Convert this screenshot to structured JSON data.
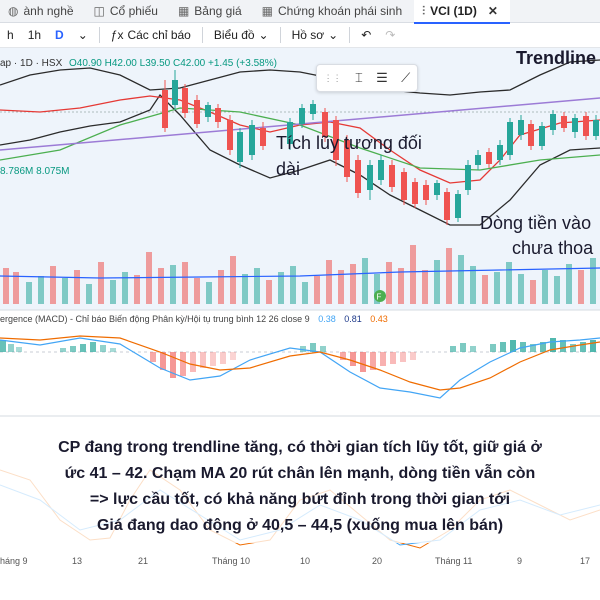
{
  "tabs": [
    {
      "icon": "globe-icon",
      "glyph": "◍",
      "label": "ành nghề"
    },
    {
      "icon": "chart-icon",
      "glyph": "◫",
      "label": "Cổ phiếu"
    },
    {
      "icon": "table-icon",
      "glyph": "▦",
      "label": "Bảng giá"
    },
    {
      "icon": "table-icon",
      "glyph": "▦",
      "label": "Chứng khoán phái sinh"
    },
    {
      "icon": "candle-icon",
      "glyph": "⫶",
      "label": "VCI (1D)",
      "active": true
    }
  ],
  "toolbar": {
    "timeframes": [
      "h",
      "1h",
      "D"
    ],
    "indicators": "Các chỉ báo",
    "chart_type": "Biểu đồ",
    "profile": "Hồ sơ"
  },
  "symbol": {
    "title": "ap · 1D · HSX",
    "ohlc": "O40.90  H42.00  L39.50  C42.00  +1.45 (+3.58%)"
  },
  "volume_label": "8.786M  8.075M",
  "macd": {
    "label": "ergence (MACD) - Chỉ báo Biến động Phân kỳ/Hội tụ trung bình 12 26 close 9",
    "hist": "0.38",
    "macd": "0.81",
    "signal": "0.43"
  },
  "annotations": {
    "trendline": "Trendline",
    "accumulation_1": "Tích lũy tương đối",
    "accumulation_2": "dài",
    "flow_1": "Dòng tiền vào",
    "flow_2": "chưa thoa"
  },
  "summary": [
    "CP đang trong trendline tăng, có thời gian tích lũy tốt, giữ giá ở",
    "ức 41 – 42. Chạm MA 20 rút chân lên mạnh, dòng tiền vẫn còn",
    "=> lực cầu tốt, có khả năng bứt đỉnh trong thời gian tới",
    "Giá đang dao động ở 40,5 – 44,5 (xuống mua lên bán)"
  ],
  "xaxis": [
    "háng 9",
    "13",
    "21",
    "Tháng 10",
    "10",
    "20",
    "Tháng 11",
    "9",
    "17"
  ],
  "colors": {
    "up": "#26a69a",
    "down": "#ef5350",
    "ma": "#e53935",
    "bb": "#2b2b2b",
    "trend": "#9c7bd6",
    "macd": "#42a5f5",
    "signal": "#ef6c00"
  }
}
